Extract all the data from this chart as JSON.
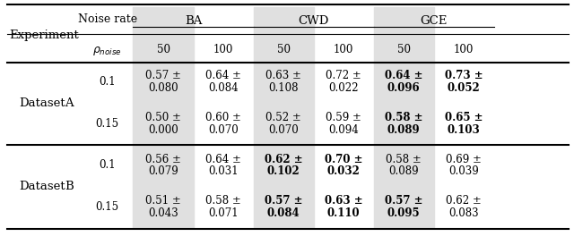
{
  "title": "",
  "col_headers_top": [
    "BA",
    "CWD",
    "GCE"
  ],
  "col_headers_mid": [
    "50",
    "100",
    "50",
    "100",
    "50",
    "100"
  ],
  "row_header1": "Experiment",
  "row_header2": "Noise rate",
  "row_header3": "ρ_noise",
  "datasets": [
    "Dataset   A",
    "Dataset   B"
  ],
  "noise_rates": [
    "0.1",
    "0.15"
  ],
  "data": {
    "A_0.1": {
      "BA_50": {
        "val": "0.57 ±",
        "std": "0.080",
        "bold": false
      },
      "BA_100": {
        "val": "0.64 ±",
        "std": "0.084",
        "bold": false
      },
      "CWD_50": {
        "val": "0.63 ±",
        "std": "0.108",
        "bold": false
      },
      "CWD_100": {
        "val": "0.72 ±",
        "std": "0.022",
        "bold": false
      },
      "GCE_50": {
        "val": "0.64 ±",
        "std": "0.096",
        "bold": true
      },
      "GCE_100": {
        "val": "0.73 ±",
        "std": "0.052",
        "bold": true
      }
    },
    "A_0.15": {
      "BA_50": {
        "val": "0.50 ±",
        "std": "0.000",
        "bold": false
      },
      "BA_100": {
        "val": "0.60 ±",
        "std": "0.070",
        "bold": false
      },
      "CWD_50": {
        "val": "0.52 ±",
        "std": "0.070",
        "bold": false
      },
      "CWD_100": {
        "val": "0.59 ±",
        "std": "0.094",
        "bold": false
      },
      "GCE_50": {
        "val": "0.58 ±",
        "std": "0.089",
        "bold": true
      },
      "GCE_100": {
        "val": "0.65 ±",
        "std": "0.103",
        "bold": true
      }
    },
    "B_0.1": {
      "BA_50": {
        "val": "0.56 ±",
        "std": "0.079",
        "bold": false
      },
      "BA_100": {
        "val": "0.64 ±",
        "std": "0.031",
        "bold": false
      },
      "CWD_50": {
        "val": "0.62 ±",
        "std": "0.102",
        "bold": true
      },
      "CWD_100": {
        "val": "0.70 ±",
        "std": "0.032",
        "bold": true
      },
      "GCE_50": {
        "val": "0.58 ±",
        "std": "0.089",
        "bold": false
      },
      "GCE_100": {
        "val": "0.69 ±",
        "std": "0.039",
        "bold": false
      }
    },
    "B_0.15": {
      "BA_50": {
        "val": "0.51 ±",
        "std": "0.043",
        "bold": false
      },
      "BA_100": {
        "val": "0.58 ±",
        "std": "0.071",
        "bold": false
      },
      "CWD_50": {
        "val": "0.57 ±",
        "std": "0.084",
        "bold": true
      },
      "CWD_100": {
        "val": "0.63 ±",
        "std": "0.110",
        "bold": true
      },
      "GCE_50": {
        "val": "0.57 ±",
        "std": "0.095",
        "bold": true
      },
      "GCE_100": {
        "val": "0.62 ±",
        "std": "0.083",
        "bold": false
      }
    }
  },
  "shaded_cols": [
    0,
    2,
    4
  ],
  "shade_color": "#e0e0e0",
  "bg_color": "#ffffff",
  "text_color": "#000000",
  "font_size": 8.5,
  "header_font_size": 9.5
}
